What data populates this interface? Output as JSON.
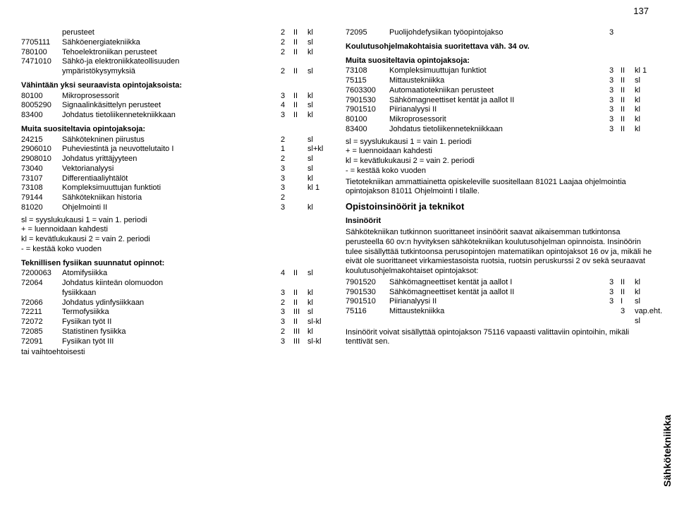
{
  "page_number": "137",
  "sidetab": "Sähkötekniikka",
  "left": {
    "rows1": [
      {
        "code": "",
        "name": "perusteet",
        "v1": "2",
        "v2": "II",
        "v3": "kl"
      },
      {
        "code": "7705111",
        "name": "Sähköenergiatekniikka",
        "v1": "2",
        "v2": "II",
        "v3": "sl"
      },
      {
        "code": "780100",
        "name": "Tehoelektroniikan perusteet",
        "v1": "2",
        "v2": "II",
        "v3": "kl"
      },
      {
        "code": "7471010",
        "name": "Sähkö-ja elektroniikkateollisuuden",
        "v1": "",
        "v2": "",
        "v3": ""
      },
      {
        "code": "",
        "name": "ympäristökysymyksiä",
        "v1": "2",
        "v2": "II",
        "v3": "sl"
      }
    ],
    "hdr1": "Vähintään yksi seuraavista opintojaksoista:",
    "rows2": [
      {
        "code": "80100",
        "name": "Mikroprosessorit",
        "v1": "3",
        "v2": "II",
        "v3": "kl"
      },
      {
        "code": "8005290",
        "name": "Signaalinkäsittelyn perusteet",
        "v1": "4",
        "v2": "II",
        "v3": "sl"
      },
      {
        "code": "83400",
        "name": "Johdatus tietoliikennetekniikkaan",
        "v1": "3",
        "v2": "II",
        "v3": "kl"
      }
    ],
    "hdr2": "Muita suositeltavia opintojaksoja:",
    "rows3": [
      {
        "code": "24215",
        "name": "Sähkötekninen piirustus",
        "v1": "2",
        "v2": "",
        "v3": "sl"
      },
      {
        "code": "2906010",
        "name": "Puheviestintä ja neuvottelutaito I",
        "v1": "1",
        "v2": "",
        "v3": "sl+kl"
      },
      {
        "code": "2908010",
        "name": "Johdatus yrittäjyyteen",
        "v1": "2",
        "v2": "",
        "v3": "sl"
      },
      {
        "code": "73040",
        "name": "Vektorianalyysi",
        "v1": "3",
        "v2": "",
        "v3": "sl"
      },
      {
        "code": "73107",
        "name": "Differentiaaliyhtälöt",
        "v1": "3",
        "v2": "",
        "v3": "kl"
      },
      {
        "code": "73108",
        "name": "Kompleksimuuttujan funktioti",
        "v1": "3",
        "v2": "",
        "v3": "kl 1"
      },
      {
        "code": "79144",
        "name": "Sähkötekniikan historia",
        "v1": "2",
        "v2": "",
        "v3": ""
      },
      {
        "code": "81020",
        "name": "Ohjelmointi II",
        "v1": "3",
        "v2": "",
        "v3": "kl"
      }
    ],
    "legend": [
      "sl = syyslukukausi 1 = vain 1. periodi",
      "+ = luennoidaan kahdesti",
      "kl = kevätlukukausi 2 = vain 2. periodi",
      "- = kestää koko vuoden"
    ],
    "hdr3": "Teknillisen fysiikan suunnatut opinnot:",
    "rows4": [
      {
        "code": "7200063",
        "name": "Atomifysiikka",
        "v1": "4",
        "v2": "II",
        "v3": "sl"
      },
      {
        "code": "72064",
        "name": "Johdatus kiinteän olomuodon",
        "v1": "",
        "v2": "",
        "v3": ""
      },
      {
        "code": "",
        "name": "fysiikkaan",
        "v1": "3",
        "v2": "II",
        "v3": "kl"
      },
      {
        "code": "72066",
        "name": "Johdatus ydinfysiikkaan",
        "v1": "2",
        "v2": "II",
        "v3": "kl"
      },
      {
        "code": "72211",
        "name": "Termofysiikka",
        "v1": "3",
        "v2": "III",
        "v3": "sl"
      },
      {
        "code": "72072",
        "name": "Fysiikan työt II",
        "v1": "3",
        "v2": "II",
        "v3": "sl-kl"
      },
      {
        "code": "72085",
        "name": "Statistinen fysiikka",
        "v1": "2",
        "v2": "III",
        "v3": "kl"
      },
      {
        "code": "72091",
        "name": "Fysiikan työt III",
        "v1": "3",
        "v2": "III",
        "v3": "sl-kl"
      }
    ],
    "tail": "tai vaihtoehtoisesti"
  },
  "right": {
    "row0": {
      "code": "72095",
      "name": "Puolijohdefysiikan työopintojakso",
      "v1": "3",
      "v2": "",
      "v3": ""
    },
    "hdr0": "Koulutusohjelmakohtaisia suoritettava väh. 34 ov.",
    "hdr1": "Muita suositeltavia opintojaksoja:",
    "rows1": [
      {
        "code": "73108",
        "name": "Kompleksimuuttujan funktiot",
        "v1": "3",
        "v2": "II",
        "v3": "kl 1"
      },
      {
        "code": "75115",
        "name": "Mittaustekniikka",
        "v1": "3",
        "v2": "II",
        "v3": "sl"
      },
      {
        "code": "7603300",
        "name": "Automaatiotekniikan perusteet",
        "v1": "3",
        "v2": "II",
        "v3": "kl"
      },
      {
        "code": "7901530",
        "name": "Sähkömagneettiset kentät ja aallot II",
        "v1": "3",
        "v2": "II",
        "v3": "kl"
      },
      {
        "code": "7901510",
        "name": "Piirianalyysi II",
        "v1": "3",
        "v2": "II",
        "v3": "kl"
      },
      {
        "code": "80100",
        "name": "Mikroprosessorit",
        "v1": "3",
        "v2": "II",
        "v3": "kl"
      },
      {
        "code": "83400",
        "name": "Johdatus tietoliikennetekniikkaan",
        "v1": "3",
        "v2": "II",
        "v3": "kl"
      }
    ],
    "legend": [
      "sl = syyslukukausi 1 = vain 1. periodi",
      "+ = luennoidaan kahdesti",
      "kl = kevätlukukausi 2 = vain 2. periodi",
      "- = kestää koko vuoden"
    ],
    "para1": "Tietotekniikan ammattiainetta opiskeleville suositellaan 81021 Laajaa ohjelmointia opintojakson 81011 Ohjelmointi I tilalle.",
    "hdr2": "Opistoinsinöörit ja teknikot",
    "hdr3": "Insinöörit",
    "para2": "Sähkötekniikan tutkinnon suorittaneet insinöörit saavat aikaisemman tutkintonsa perusteella 60 ov:n hyvityksen sähkötekniikan koulutusohjelman opinnoista. Insinöörin tulee sisällyttää tutkintoonsa perusopintojen matematiikan opintojaksot 16 ov ja, mikäli he eivät ole suorittaneet virkamiestasoista ruotsia, ruotsin peruskurssi 2 ov sekä seuraavat koulutusohjelmakohtaiset opintojaksot:",
    "rows2": [
      {
        "code": "7901520",
        "name": "Sähkömagneettiset kentät ja aallot I",
        "v1": "3",
        "v2": "II",
        "v3": "kl"
      },
      {
        "code": "7901530",
        "name": "Sähkömagneettiset kentät ja aallot II",
        "v1": "3",
        "v2": "II",
        "v3": "kl"
      },
      {
        "code": "7901510",
        "name": "Piirianalyysi II",
        "v1": "3",
        "v2": "I",
        "v3": "sl"
      },
      {
        "code": "75116",
        "name": "Mittaustekniikka",
        "v1": "",
        "v2": "3",
        "v3": "vap.eht. sl"
      }
    ],
    "para3": "Insinöörit voivat sisällyttää opintojakson 75116 vapaasti valittaviin opintoihin, mikäli tenttivät sen."
  }
}
